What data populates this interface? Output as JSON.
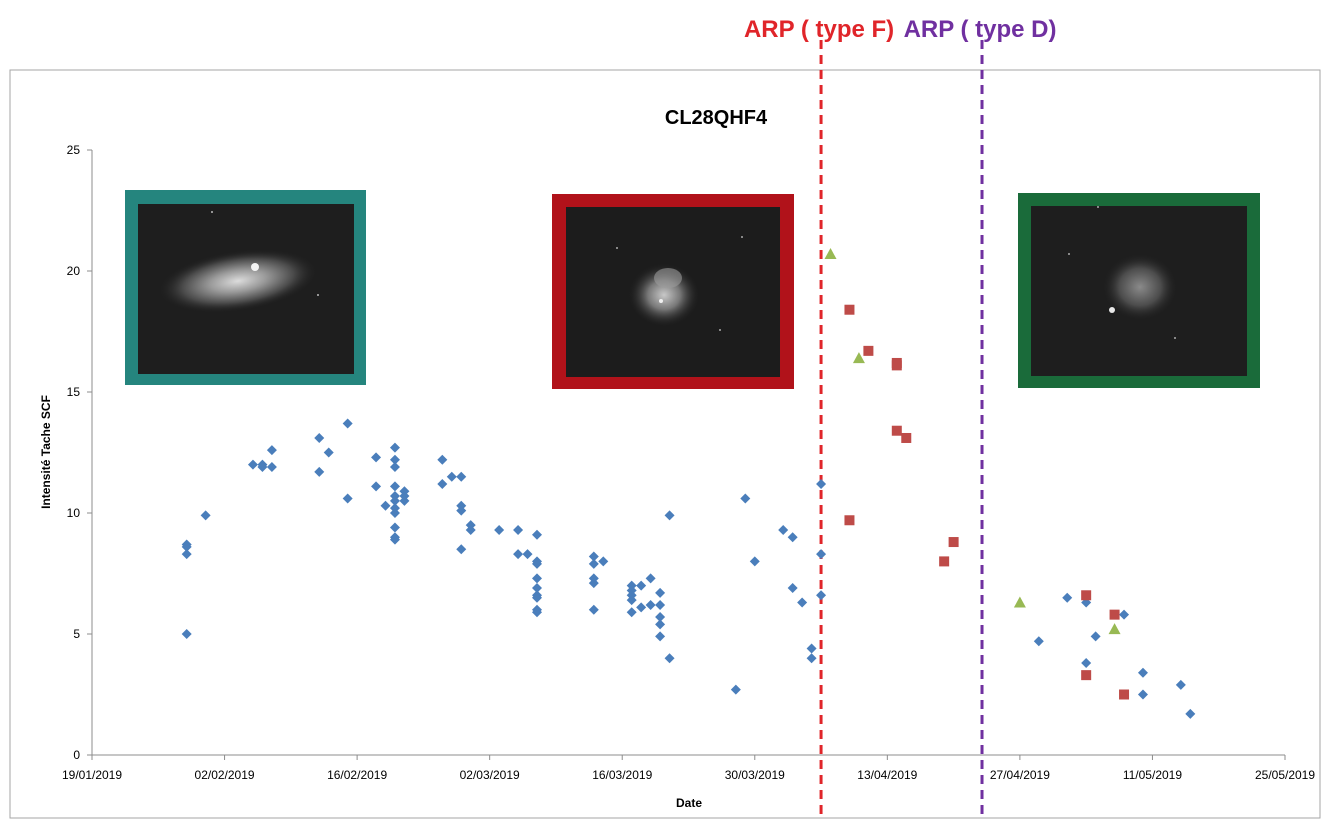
{
  "chart_data": {
    "type": "scatter",
    "title": "CL28QHF4",
    "xlabel": "Date",
    "ylabel": "Intensité Tache SCF",
    "xlim": [
      "2019-01-19",
      "2019-05-25"
    ],
    "ylim": [
      0,
      25
    ],
    "x_ticks": [
      "19/01/2019",
      "02/02/2019",
      "16/02/2019",
      "02/03/2019",
      "16/03/2019",
      "30/03/2019",
      "13/04/2019",
      "27/04/2019",
      "11/05/2019",
      "25/05/2019"
    ],
    "y_ticks": [
      "0",
      "5",
      "10",
      "15",
      "20",
      "25"
    ],
    "grid": false,
    "legend": "none",
    "series": [
      {
        "marker": "diamond",
        "color": "#4a7ebb",
        "points": [
          [
            "2019-01-29",
            8.7
          ],
          [
            "2019-01-29",
            8.6
          ],
          [
            "2019-01-29",
            8.3
          ],
          [
            "2019-01-29",
            5.0
          ],
          [
            "2019-01-31",
            9.9
          ],
          [
            "2019-02-05",
            12.0
          ],
          [
            "2019-02-06",
            12.0
          ],
          [
            "2019-02-06",
            11.9
          ],
          [
            "2019-02-07",
            11.9
          ],
          [
            "2019-02-07",
            12.6
          ],
          [
            "2019-02-12",
            13.1
          ],
          [
            "2019-02-12",
            11.7
          ],
          [
            "2019-02-13",
            12.5
          ],
          [
            "2019-02-15",
            13.7
          ],
          [
            "2019-02-15",
            10.6
          ],
          [
            "2019-02-18",
            12.3
          ],
          [
            "2019-02-18",
            11.1
          ],
          [
            "2019-02-19",
            10.3
          ],
          [
            "2019-02-20",
            12.7
          ],
          [
            "2019-02-20",
            12.2
          ],
          [
            "2019-02-20",
            11.9
          ],
          [
            "2019-02-20",
            11.1
          ],
          [
            "2019-02-20",
            10.7
          ],
          [
            "2019-02-20",
            10.5
          ],
          [
            "2019-02-20",
            10.2
          ],
          [
            "2019-02-20",
            10.0
          ],
          [
            "2019-02-20",
            9.4
          ],
          [
            "2019-02-20",
            9.0
          ],
          [
            "2019-02-20",
            8.9
          ],
          [
            "2019-02-21",
            10.9
          ],
          [
            "2019-02-21",
            10.7
          ],
          [
            "2019-02-21",
            10.5
          ],
          [
            "2019-02-25",
            12.2
          ],
          [
            "2019-02-25",
            11.2
          ],
          [
            "2019-02-26",
            11.5
          ],
          [
            "2019-02-27",
            11.5
          ],
          [
            "2019-02-27",
            10.3
          ],
          [
            "2019-02-27",
            10.1
          ],
          [
            "2019-02-27",
            8.5
          ],
          [
            "2019-02-28",
            9.5
          ],
          [
            "2019-02-28",
            9.3
          ],
          [
            "2019-03-03",
            9.3
          ],
          [
            "2019-03-05",
            9.3
          ],
          [
            "2019-03-05",
            8.3
          ],
          [
            "2019-03-06",
            8.3
          ],
          [
            "2019-03-07",
            9.1
          ],
          [
            "2019-03-07",
            8.0
          ],
          [
            "2019-03-07",
            7.9
          ],
          [
            "2019-03-07",
            7.3
          ],
          [
            "2019-03-07",
            6.9
          ],
          [
            "2019-03-07",
            6.6
          ],
          [
            "2019-03-07",
            6.5
          ],
          [
            "2019-03-07",
            6.0
          ],
          [
            "2019-03-07",
            5.9
          ],
          [
            "2019-03-13",
            8.2
          ],
          [
            "2019-03-13",
            7.9
          ],
          [
            "2019-03-13",
            7.3
          ],
          [
            "2019-03-13",
            7.1
          ],
          [
            "2019-03-13",
            6.0
          ],
          [
            "2019-03-14",
            8.0
          ],
          [
            "2019-03-17",
            7.0
          ],
          [
            "2019-03-17",
            6.8
          ],
          [
            "2019-03-17",
            6.6
          ],
          [
            "2019-03-17",
            6.4
          ],
          [
            "2019-03-17",
            5.9
          ],
          [
            "2019-03-18",
            7.0
          ],
          [
            "2019-03-18",
            6.1
          ],
          [
            "2019-03-19",
            7.3
          ],
          [
            "2019-03-19",
            6.2
          ],
          [
            "2019-03-20",
            6.2
          ],
          [
            "2019-03-20",
            6.7
          ],
          [
            "2019-03-20",
            5.7
          ],
          [
            "2019-03-20",
            5.4
          ],
          [
            "2019-03-20",
            4.9
          ],
          [
            "2019-03-21",
            9.9
          ],
          [
            "2019-03-21",
            4.0
          ],
          [
            "2019-03-28",
            2.7
          ],
          [
            "2019-03-29",
            10.6
          ],
          [
            "2019-03-30",
            8.0
          ],
          [
            "2019-04-02",
            9.3
          ],
          [
            "2019-04-03",
            9.0
          ],
          [
            "2019-04-03",
            6.9
          ],
          [
            "2019-04-04",
            6.3
          ],
          [
            "2019-04-05",
            4.4
          ],
          [
            "2019-04-05",
            4.0
          ],
          [
            "2019-04-06",
            11.2
          ],
          [
            "2019-04-06",
            8.3
          ],
          [
            "2019-04-06",
            6.6
          ],
          [
            "2019-04-29",
            4.7
          ],
          [
            "2019-05-02",
            6.5
          ],
          [
            "2019-05-04",
            6.3
          ],
          [
            "2019-05-04",
            3.8
          ],
          [
            "2019-05-05",
            4.9
          ],
          [
            "2019-05-08",
            5.8
          ],
          [
            "2019-05-10",
            3.4
          ],
          [
            "2019-05-10",
            2.5
          ],
          [
            "2019-05-14",
            2.9
          ],
          [
            "2019-05-15",
            1.7
          ]
        ]
      },
      {
        "marker": "square",
        "color": "#be4b48",
        "points": [
          [
            "2019-04-09",
            18.4
          ],
          [
            "2019-04-09",
            9.7
          ],
          [
            "2019-04-11",
            16.7
          ],
          [
            "2019-04-14",
            16.2
          ],
          [
            "2019-04-14",
            16.1
          ],
          [
            "2019-04-14",
            13.4
          ],
          [
            "2019-04-15",
            13.1
          ],
          [
            "2019-04-19",
            8.0
          ],
          [
            "2019-04-20",
            8.8
          ],
          [
            "2019-05-04",
            6.6
          ],
          [
            "2019-05-04",
            3.3
          ],
          [
            "2019-05-07",
            5.8
          ],
          [
            "2019-05-08",
            2.5
          ]
        ]
      },
      {
        "marker": "triangle",
        "color": "#98b954",
        "points": [
          [
            "2019-04-07",
            20.7
          ],
          [
            "2019-04-10",
            16.4
          ],
          [
            "2019-04-27",
            6.3
          ],
          [
            "2019-05-07",
            5.2
          ]
        ]
      }
    ],
    "reference_lines": [
      {
        "label": "ARP ( type F)",
        "date": "2019-04-06",
        "color": "#e0252a"
      },
      {
        "label": "ARP ( type D)",
        "date": "2019-04-23",
        "color": "#7030a0"
      }
    ],
    "inset_images": [
      {
        "name": "teal-frame-image",
        "frame_color": "#25857e"
      },
      {
        "name": "red-frame-image",
        "frame_color": "#b1121a"
      },
      {
        "name": "green-frame-image",
        "frame_color": "#1a6b3a"
      }
    ]
  }
}
